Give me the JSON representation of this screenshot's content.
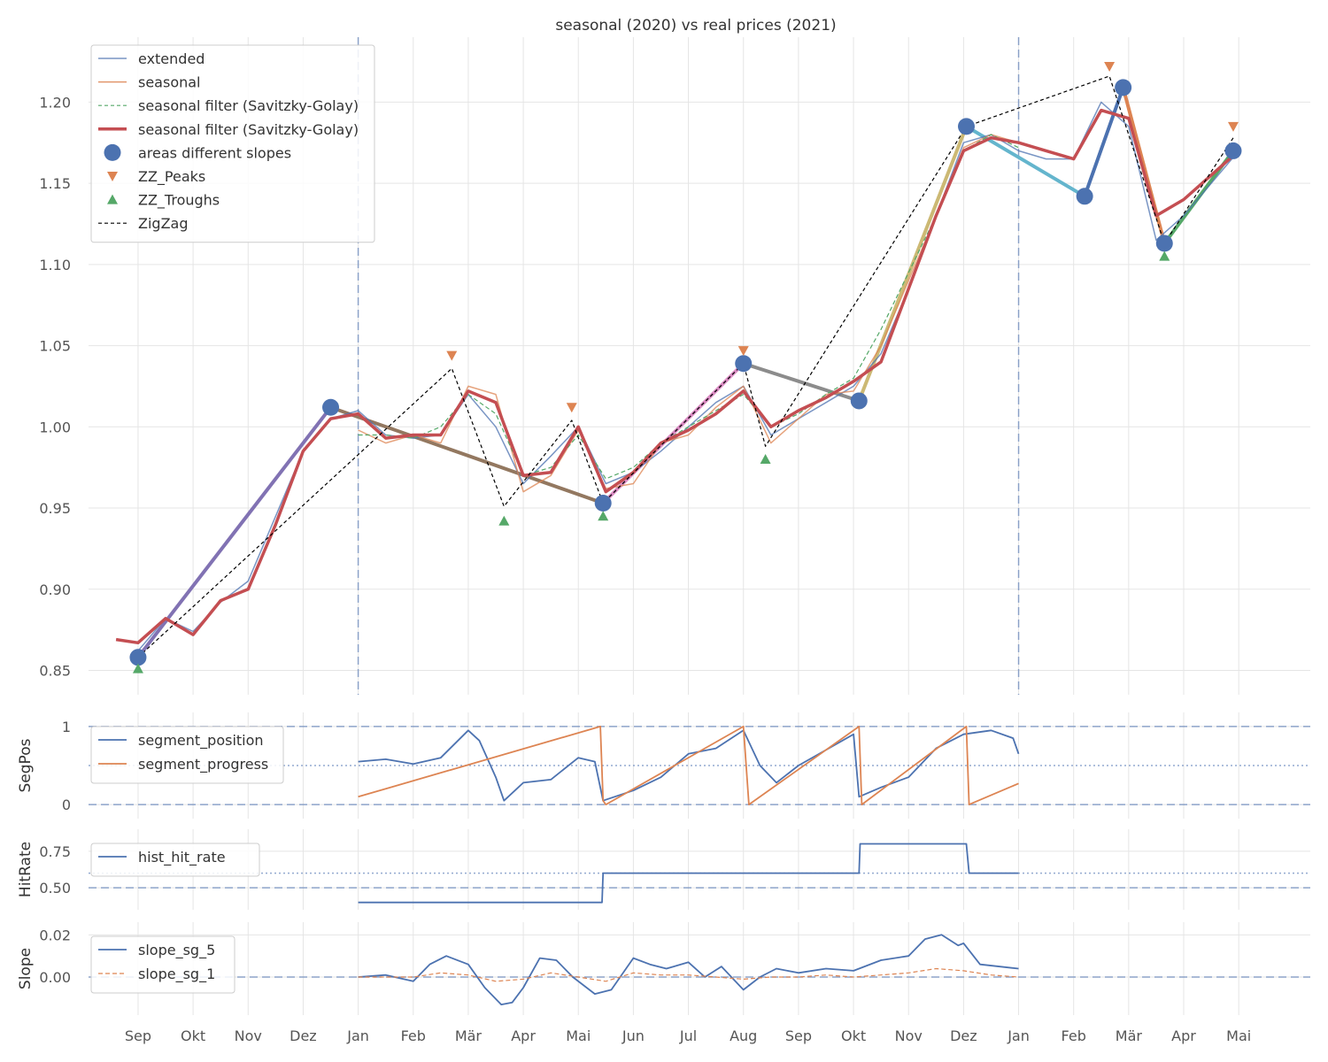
{
  "colors": {
    "blue": "#4c72b0",
    "orange": "#dd8452",
    "green": "#55a868",
    "red": "#c44e52",
    "purple": "#8172b3",
    "brown": "#937860",
    "pink": "#da8bc3",
    "gray": "#8c8c8c",
    "olive": "#ccb974",
    "cyan": "#64b5cd"
  },
  "chart_data": [
    {
      "id": "main",
      "type": "line",
      "title": "seasonal (2020) vs real prices (2021)",
      "xlabel": "",
      "ylabel": "",
      "x_unit": "month index (0 = 1 Sep 2020)",
      "xlim": [
        -0.9,
        21.3
      ],
      "ylim": [
        0.835,
        1.24
      ],
      "yticks": [
        0.85,
        0.9,
        0.95,
        1.0,
        1.05,
        1.1,
        1.15,
        1.2
      ],
      "ytick_labels": [
        "0.85",
        "0.90",
        "0.95",
        "1.00",
        "1.05",
        "1.10",
        "1.15",
        "1.20"
      ],
      "month_ticks": [
        0,
        1,
        2,
        3,
        4,
        5,
        6,
        7,
        8,
        9,
        10,
        11,
        12,
        13,
        14,
        15,
        16,
        17,
        18,
        19,
        20
      ],
      "month_labels": [
        "Sep",
        "Okt",
        "Nov",
        "Dez",
        "Jan",
        "Feb",
        "Mär",
        "Apr",
        "Mai",
        "Jun",
        "Jul",
        "Aug",
        "Sep",
        "Okt",
        "Nov",
        "Dez",
        "Jan",
        "Feb",
        "Mär",
        "Apr",
        "Mai"
      ],
      "vlines": [
        4,
        16
      ],
      "legend": [
        "extended",
        "seasonal",
        "seasonal filter (Savitzky-Golay)",
        "seasonal filter (Savitzky-Golay)",
        "areas different slopes",
        "ZZ_Peaks",
        "ZZ_Troughs",
        "ZigZag"
      ],
      "series": [
        {
          "name": "extended",
          "style": "blue thin",
          "x": [
            0.0,
            0.5,
            1.0,
            1.5,
            2.0,
            2.5,
            3.0,
            3.5,
            4.0,
            4.5,
            5.0,
            5.5,
            6.0,
            6.5,
            7.0,
            7.5,
            8.0,
            8.5,
            9.0,
            9.5,
            10.0,
            10.5,
            11.0,
            11.5,
            12.0,
            12.5,
            13.0,
            13.5,
            14.0,
            14.5,
            15.0,
            15.5,
            16.0,
            16.5,
            17.0,
            17.5,
            18.0,
            18.5,
            19.0,
            19.5,
            20.0
          ],
          "y": [
            0.862,
            0.882,
            0.874,
            0.892,
            0.905,
            0.945,
            0.985,
            1.005,
            1.01,
            0.995,
            0.993,
            0.995,
            1.02,
            1.0,
            0.965,
            0.982,
            1.0,
            0.965,
            0.972,
            0.985,
            1.0,
            1.015,
            1.025,
            0.995,
            1.005,
            1.015,
            1.025,
            1.045,
            1.085,
            1.13,
            1.175,
            1.18,
            1.17,
            1.165,
            1.165,
            1.2,
            1.185,
            1.115,
            1.13,
            1.15,
            1.17
          ]
        },
        {
          "name": "seasonal",
          "style": "orange thin",
          "x": [
            4.0,
            4.5,
            5.0,
            5.5,
            6.0,
            6.5,
            7.0,
            7.5,
            8.0,
            8.5,
            9.0,
            9.5,
            10.0,
            10.5,
            11.0,
            11.5,
            12.0,
            12.5,
            13.0,
            13.5,
            14.0,
            14.5,
            15.0,
            15.5,
            16.0
          ],
          "y": [
            0.998,
            0.99,
            0.995,
            0.99,
            1.025,
            1.02,
            0.96,
            0.97,
            0.998,
            0.962,
            0.965,
            0.99,
            0.995,
            1.012,
            1.025,
            0.99,
            1.005,
            1.02,
            1.022,
            1.05,
            1.09,
            1.13,
            1.172,
            1.18,
            1.175
          ]
        },
        {
          "name": "seasonal filter (Savitzky-Golay)",
          "style": "green dashed",
          "x": [
            4.0,
            4.5,
            5.0,
            5.5,
            6.0,
            6.5,
            7.0,
            7.5,
            8.0,
            8.5,
            9.0,
            9.5,
            10.0,
            10.5,
            11.0,
            11.5,
            12.0,
            12.5,
            13.0,
            13.5,
            14.0,
            14.5,
            15.0,
            15.5,
            16.0
          ],
          "y": [
            0.995,
            0.995,
            0.993,
            1.0,
            1.02,
            1.008,
            0.97,
            0.975,
            0.995,
            0.968,
            0.975,
            0.99,
            1.0,
            1.01,
            1.02,
            1.0,
            1.008,
            1.02,
            1.03,
            1.06,
            1.095,
            1.13,
            1.17,
            1.18,
            1.172
          ]
        },
        {
          "name": "seasonal filter (Savitzky-Golay) ",
          "style": "red thick",
          "x": [
            -0.4,
            0.0,
            0.5,
            1.0,
            1.5,
            2.0,
            2.5,
            3.0,
            3.5,
            4.0,
            4.5,
            5.0,
            5.5,
            6.0,
            6.5,
            7.0,
            7.5,
            8.0,
            8.5,
            9.0,
            9.5,
            10.0,
            10.5,
            11.0,
            11.5,
            12.0,
            12.5,
            13.0,
            13.5,
            14.0,
            14.5,
            15.0,
            15.5,
            16.0,
            16.5,
            17.0,
            17.5,
            18.0,
            18.5,
            19.0,
            19.5,
            20.0
          ],
          "y": [
            0.869,
            0.867,
            0.882,
            0.872,
            0.893,
            0.9,
            0.94,
            0.985,
            1.005,
            1.008,
            0.993,
            0.995,
            0.995,
            1.022,
            1.015,
            0.97,
            0.972,
            1.0,
            0.96,
            0.972,
            0.99,
            0.998,
            1.008,
            1.022,
            1.0,
            1.01,
            1.018,
            1.028,
            1.04,
            1.085,
            1.13,
            1.17,
            1.178,
            1.175,
            1.17,
            1.165,
            1.195,
            1.19,
            1.13,
            1.14,
            1.155,
            1.17
          ]
        },
        {
          "name": "ZigZag",
          "style": "black dashed",
          "x": [
            0.0,
            5.7,
            6.65,
            7.88,
            8.45,
            11.0,
            11.4,
            15.05,
            17.65,
            18.65,
            19.9
          ],
          "y": [
            0.858,
            1.036,
            0.951,
            1.004,
            0.953,
            1.039,
            0.988,
            1.185,
            1.216,
            1.113,
            1.178
          ]
        }
      ],
      "slope_segments": [
        {
          "color": "purple",
          "x": [
            0.0,
            3.5
          ],
          "y": [
            0.858,
            1.012
          ]
        },
        {
          "color": "brown",
          "x": [
            3.5,
            8.45
          ],
          "y": [
            1.012,
            0.953
          ]
        },
        {
          "color": "pink",
          "x": [
            8.45,
            11.0
          ],
          "y": [
            0.953,
            1.039
          ]
        },
        {
          "color": "gray",
          "x": [
            11.0,
            13.1
          ],
          "y": [
            1.039,
            1.016
          ]
        },
        {
          "color": "olive",
          "x": [
            13.1,
            15.05
          ],
          "y": [
            1.016,
            1.185
          ]
        },
        {
          "color": "cyan",
          "x": [
            15.05,
            17.2
          ],
          "y": [
            1.185,
            1.142
          ]
        },
        {
          "color": "blue",
          "x": [
            17.2,
            17.9
          ],
          "y": [
            1.142,
            1.209
          ]
        },
        {
          "color": "orange",
          "x": [
            17.9,
            18.65
          ],
          "y": [
            1.209,
            1.113
          ]
        },
        {
          "color": "green",
          "x": [
            18.65,
            19.9
          ],
          "y": [
            1.113,
            1.17
          ]
        }
      ],
      "areas_different_slopes": {
        "x": [
          0.0,
          3.5,
          8.45,
          11.0,
          13.1,
          15.05,
          17.2,
          17.9,
          18.65,
          19.9
        ],
        "y": [
          0.858,
          1.012,
          0.953,
          1.039,
          1.016,
          1.185,
          1.142,
          1.209,
          1.113,
          1.17
        ]
      },
      "zz_peaks": {
        "x": [
          5.7,
          7.88,
          11.0,
          17.65,
          19.9
        ],
        "y": [
          1.044,
          1.012,
          1.047,
          1.222,
          1.185
        ]
      },
      "zz_troughs": {
        "x": [
          0.0,
          6.65,
          8.45,
          11.4,
          18.65
        ],
        "y": [
          0.851,
          0.942,
          0.945,
          0.98,
          1.105
        ]
      }
    },
    {
      "id": "segpos",
      "type": "line",
      "title": "",
      "ylabel": "SegPos",
      "ylim": [
        -0.18,
        1.18
      ],
      "yticks": [
        0,
        1
      ],
      "ytick_labels": [
        "0",
        "1"
      ],
      "hlines_dashed": [
        0,
        1
      ],
      "hlines_dotted": [
        0.5
      ],
      "legend": [
        "segment_position",
        "segment_progress"
      ],
      "series": [
        {
          "name": "segment_position",
          "style": "blue",
          "x": [
            4.0,
            4.5,
            5.0,
            5.5,
            6.0,
            6.2,
            6.5,
            6.65,
            7.0,
            7.5,
            8.0,
            8.3,
            8.45,
            9.0,
            9.5,
            10.0,
            10.5,
            11.0,
            11.3,
            11.6,
            12.0,
            12.5,
            13.0,
            13.1,
            13.5,
            14.0,
            14.5,
            15.0,
            15.5,
            15.9,
            16.0
          ],
          "y": [
            0.55,
            0.58,
            0.52,
            0.6,
            0.95,
            0.82,
            0.35,
            0.05,
            0.28,
            0.32,
            0.6,
            0.55,
            0.05,
            0.18,
            0.35,
            0.65,
            0.72,
            0.95,
            0.5,
            0.28,
            0.5,
            0.7,
            0.9,
            0.1,
            0.22,
            0.35,
            0.72,
            0.9,
            0.95,
            0.85,
            0.65
          ]
        },
        {
          "name": "segment_progress",
          "style": "orange",
          "x": [
            4.0,
            8.4,
            8.45,
            8.5,
            11.0,
            11.1,
            13.1,
            13.15,
            15.05,
            15.1,
            16.0
          ],
          "y": [
            0.1,
            1.0,
            0.05,
            0.0,
            1.0,
            0.0,
            1.0,
            0.0,
            1.0,
            0.0,
            0.27
          ]
        }
      ]
    },
    {
      "id": "hitrate",
      "type": "line",
      "title": "",
      "ylabel": "HitRate",
      "ylim": [
        0.35,
        0.9
      ],
      "yticks": [
        0.5,
        0.75
      ],
      "ytick_labels": [
        "0.50",
        "0.75"
      ],
      "hlines_dashed": [
        0.5
      ],
      "hlines_dotted": [
        0.6
      ],
      "legend": [
        "hist_hit_rate"
      ],
      "series": [
        {
          "name": "hist_hit_rate",
          "style": "blue step",
          "x": [
            4.0,
            8.43,
            8.45,
            13.1,
            13.12,
            15.05,
            15.1,
            16.0
          ],
          "y": [
            0.4,
            0.4,
            0.6,
            0.6,
            0.8,
            0.8,
            0.6,
            0.6
          ]
        }
      ]
    },
    {
      "id": "slope",
      "type": "line",
      "title": "",
      "ylabel": "Slope",
      "ylim": [
        -0.018,
        0.026
      ],
      "yticks": [
        0.0,
        0.02
      ],
      "ytick_labels": [
        "0.00",
        "0.02"
      ],
      "hlines_dashed": [
        0.0
      ],
      "legend": [
        "slope_sg_5",
        "slope_sg_1"
      ],
      "series": [
        {
          "name": "slope_sg_5",
          "style": "blue",
          "x": [
            4.0,
            4.5,
            5.0,
            5.3,
            5.6,
            6.0,
            6.3,
            6.6,
            6.8,
            7.0,
            7.3,
            7.6,
            7.9,
            8.3,
            8.6,
            9.0,
            9.3,
            9.6,
            10.0,
            10.3,
            10.6,
            11.0,
            11.3,
            11.6,
            12.0,
            12.5,
            13.0,
            13.5,
            14.0,
            14.3,
            14.6,
            14.9,
            15.0,
            15.3,
            16.0
          ],
          "y": [
            0.0,
            0.001,
            -0.002,
            0.006,
            0.01,
            0.006,
            -0.005,
            -0.013,
            -0.012,
            -0.005,
            0.009,
            0.008,
            0.0,
            -0.008,
            -0.006,
            0.009,
            0.006,
            0.004,
            0.007,
            0.0,
            0.005,
            -0.006,
            0.0,
            0.004,
            0.002,
            0.004,
            0.003,
            0.008,
            0.01,
            0.018,
            0.02,
            0.015,
            0.016,
            0.006,
            0.004
          ]
        },
        {
          "name": "slope_sg_1",
          "style": "orange dashed",
          "x": [
            4.0,
            5.0,
            5.5,
            6.0,
            6.5,
            7.0,
            7.5,
            8.0,
            8.5,
            9.0,
            9.5,
            10.0,
            10.5,
            11.0,
            11.5,
            12.0,
            12.5,
            13.0,
            13.5,
            14.0,
            14.5,
            15.0,
            15.5,
            16.0
          ],
          "y": [
            0.0,
            0.0,
            0.002,
            0.001,
            -0.002,
            -0.001,
            0.002,
            0.0,
            -0.002,
            0.002,
            0.001,
            0.001,
            0.0,
            -0.001,
            0.0,
            0.0,
            0.001,
            0.0,
            0.001,
            0.002,
            0.004,
            0.003,
            0.001,
            0.0
          ]
        }
      ]
    }
  ]
}
